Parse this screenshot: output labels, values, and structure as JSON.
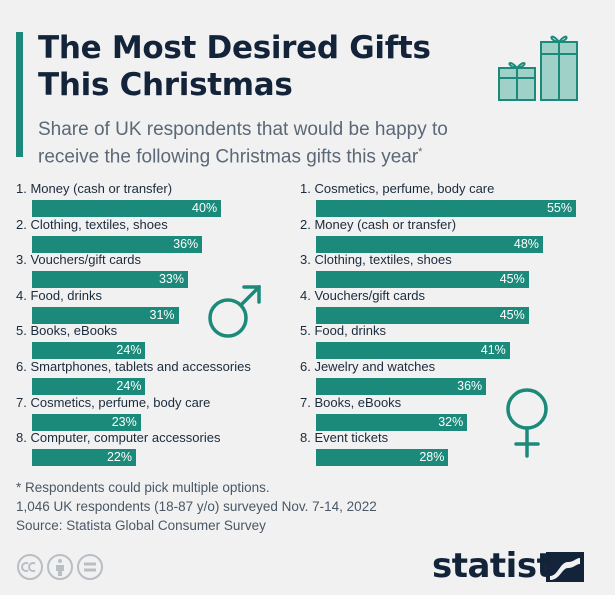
{
  "header": {
    "title_line1": "The Most Desired Gifts",
    "title_line2": "This Christmas",
    "subtitle_line1": "Share of UK respondents that would be happy to",
    "subtitle_line2": "receive the following Christmas gifts this year",
    "subtitle_mark": "*"
  },
  "colors": {
    "bar": "#1b8a7a",
    "title": "#13233a",
    "background": "#f1f1f1"
  },
  "chart_data": [
    {
      "type": "bar",
      "orientation": "horizontal",
      "group_icon": "male-symbol-icon",
      "categories": [
        "1. Money (cash or transfer)",
        "2. Clothing, textiles, shoes",
        "3. Vouchers/gift cards",
        "4. Food, drinks",
        "5. Books, eBooks",
        "6. Smartphones, tablets and accessories",
        "7. Cosmetics, perfume, body care",
        "8. Computer, computer accessories"
      ],
      "values": [
        40,
        36,
        33,
        31,
        24,
        24,
        23,
        22
      ],
      "value_labels": [
        "40%",
        "36%",
        "33%",
        "31%",
        "24%",
        "24%",
        "23%",
        "22%"
      ],
      "unit": "%",
      "xlim": [
        0,
        55
      ]
    },
    {
      "type": "bar",
      "orientation": "horizontal",
      "group_icon": "female-symbol-icon",
      "categories": [
        "1. Cosmetics, perfume, body care",
        "2. Money (cash or transfer)",
        "3. Clothing, textiles, shoes",
        "4. Vouchers/gift cards",
        "5. Food, drinks",
        "6. Jewelry and watches",
        "7. Books, eBooks",
        "8. Event tickets"
      ],
      "values": [
        55,
        48,
        45,
        45,
        41,
        36,
        32,
        28
      ],
      "value_labels": [
        "55%",
        "48%",
        "45%",
        "45%",
        "41%",
        "36%",
        "32%",
        "28%"
      ],
      "unit": "%",
      "xlim": [
        0,
        55
      ]
    }
  ],
  "footer": {
    "note_line1": "* Respondents could pick multiple options.",
    "note_line2": "1,046 UK respondents (18-87 y/o) surveyed Nov. 7-14, 2022",
    "source": "Source: Statista Global Consumer Survey",
    "license_icons": [
      "cc-icon",
      "attribution-icon",
      "no-derivatives-icon"
    ],
    "brand": "statista"
  }
}
